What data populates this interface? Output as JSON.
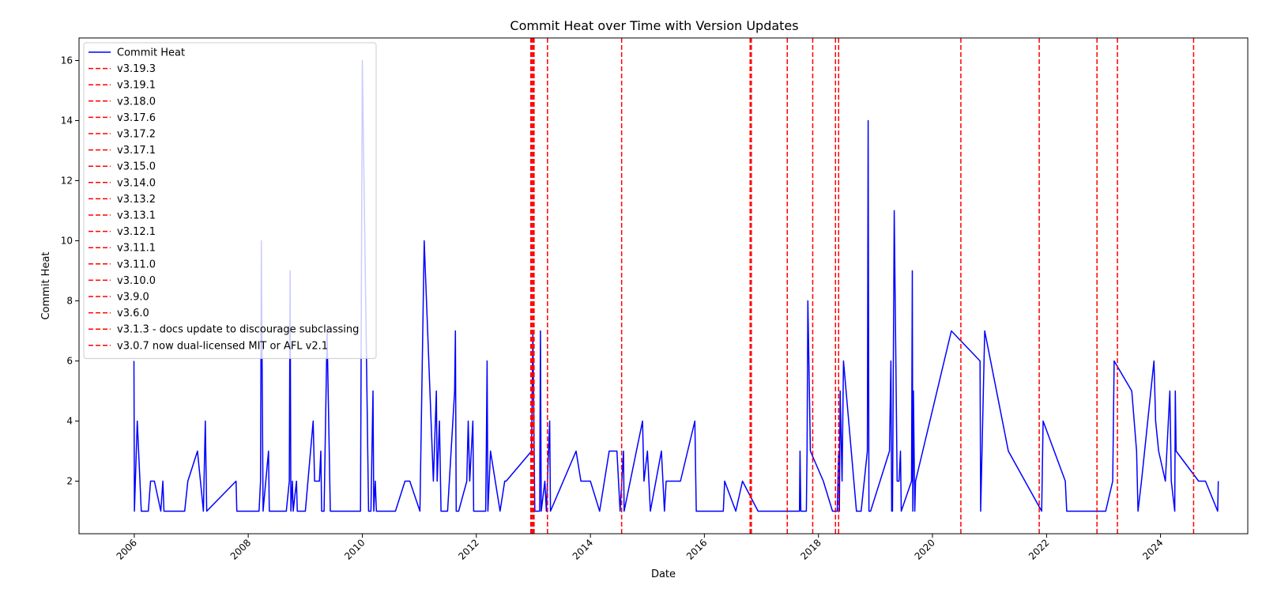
{
  "chart_data": {
    "type": "line",
    "title": "Commit Heat over Time with Version Updates",
    "xlabel": "Date",
    "ylabel": "Commit Heat",
    "xlim": [
      "2005-01-12",
      "2025-07-13"
    ],
    "ylim": [
      0.25,
      16.75
    ],
    "x_ticks": [
      "2006",
      "2008",
      "2010",
      "2012",
      "2014",
      "2016",
      "2018",
      "2020",
      "2022",
      "2024"
    ],
    "y_ticks": [
      2,
      4,
      6,
      8,
      10,
      12,
      14,
      16
    ],
    "grid": false,
    "legend_position": "upper-left",
    "colors": {
      "series": "#0000ff",
      "version_lines": "#ff0000",
      "axis": "#000000"
    },
    "series": [
      {
        "name": "Commit Heat",
        "color": "#0000ff",
        "points": [
          [
            "2005-12-30",
            6
          ],
          [
            "2006-01-02",
            1
          ],
          [
            "2006-01-20",
            4
          ],
          [
            "2006-02-15",
            1
          ],
          [
            "2006-04-01",
            1
          ],
          [
            "2006-04-15",
            2
          ],
          [
            "2006-05-10",
            2
          ],
          [
            "2006-06-20",
            1
          ],
          [
            "2006-07-03",
            2
          ],
          [
            "2006-07-10",
            1
          ],
          [
            "2006-11-20",
            1
          ],
          [
            "2006-12-10",
            2
          ],
          [
            "2007-02-10",
            3
          ],
          [
            "2007-03-20",
            1
          ],
          [
            "2007-04-01",
            4
          ],
          [
            "2007-04-10",
            1
          ],
          [
            "2007-10-15",
            2
          ],
          [
            "2007-10-20",
            1
          ],
          [
            "2008-03-10",
            1
          ],
          [
            "2008-03-20",
            2
          ],
          [
            "2008-03-25",
            10
          ],
          [
            "2008-04-05",
            1
          ],
          [
            "2008-05-10",
            3
          ],
          [
            "2008-05-15",
            1
          ],
          [
            "2008-09-01",
            1
          ],
          [
            "2008-09-20",
            2
          ],
          [
            "2008-09-25",
            9
          ],
          [
            "2008-09-30",
            1
          ],
          [
            "2008-10-10",
            2
          ],
          [
            "2008-10-15",
            1
          ],
          [
            "2008-11-05",
            2
          ],
          [
            "2008-11-10",
            1
          ],
          [
            "2009-01-01",
            1
          ],
          [
            "2009-02-20",
            4
          ],
          [
            "2009-03-01",
            2
          ],
          [
            "2009-04-01",
            2
          ],
          [
            "2009-04-10",
            3
          ],
          [
            "2009-04-15",
            1
          ],
          [
            "2009-05-01",
            1
          ],
          [
            "2009-05-20",
            7
          ],
          [
            "2009-06-10",
            1
          ],
          [
            "2009-12-20",
            1
          ],
          [
            "2010-01-01",
            16
          ],
          [
            "2010-01-25",
            7
          ],
          [
            "2010-02-10",
            1
          ],
          [
            "2010-02-25",
            1
          ],
          [
            "2010-03-10",
            5
          ],
          [
            "2010-03-15",
            1
          ],
          [
            "2010-03-25",
            2
          ],
          [
            "2010-04-01",
            1
          ],
          [
            "2010-08-01",
            1
          ],
          [
            "2010-10-01",
            2
          ],
          [
            "2010-11-01",
            2
          ],
          [
            "2011-01-05",
            1
          ],
          [
            "2011-02-01",
            10
          ],
          [
            "2011-04-01",
            2
          ],
          [
            "2011-04-20",
            5
          ],
          [
            "2011-04-25",
            2
          ],
          [
            "2011-05-10",
            4
          ],
          [
            "2011-05-20",
            1
          ],
          [
            "2011-07-01",
            1
          ],
          [
            "2011-08-15",
            5
          ],
          [
            "2011-08-20",
            7
          ],
          [
            "2011-08-25",
            1
          ],
          [
            "2011-09-10",
            1
          ],
          [
            "2011-11-01",
            2
          ],
          [
            "2011-11-10",
            4
          ],
          [
            "2011-11-20",
            2
          ],
          [
            "2011-12-10",
            4
          ],
          [
            "2011-12-15",
            1
          ],
          [
            "2012-03-01",
            1
          ],
          [
            "2012-03-05",
            3
          ],
          [
            "2012-03-10",
            6
          ],
          [
            "2012-03-15",
            1
          ],
          [
            "2012-04-01",
            3
          ],
          [
            "2012-06-01",
            1
          ],
          [
            "2012-07-01",
            2
          ],
          [
            "2012-07-10",
            2
          ],
          [
            "2012-12-20",
            3
          ],
          [
            "2012-12-28",
            7
          ],
          [
            "2013-01-10",
            1
          ],
          [
            "2013-02-10",
            1
          ],
          [
            "2013-02-15",
            7
          ],
          [
            "2013-02-20",
            1
          ],
          [
            "2013-03-15",
            2
          ],
          [
            "2013-03-25",
            1
          ],
          [
            "2013-04-15",
            4
          ],
          [
            "2013-04-20",
            1
          ],
          [
            "2013-10-01",
            3
          ],
          [
            "2013-11-01",
            2
          ],
          [
            "2014-01-01",
            2
          ],
          [
            "2014-03-01",
            1
          ],
          [
            "2014-05-01",
            3
          ],
          [
            "2014-06-20",
            3
          ],
          [
            "2014-07-10",
            1
          ],
          [
            "2014-08-01",
            3
          ],
          [
            "2014-08-05",
            1
          ],
          [
            "2014-12-01",
            4
          ],
          [
            "2014-12-10",
            2
          ],
          [
            "2015-01-01",
            3
          ],
          [
            "2015-01-20",
            1
          ],
          [
            "2015-04-01",
            3
          ],
          [
            "2015-04-20",
            1
          ],
          [
            "2015-05-01",
            2
          ],
          [
            "2015-08-01",
            2
          ],
          [
            "2015-11-01",
            4
          ],
          [
            "2015-11-10",
            1
          ],
          [
            "2016-05-01",
            1
          ],
          [
            "2016-05-10",
            2
          ],
          [
            "2016-07-20",
            1
          ],
          [
            "2016-09-01",
            2
          ],
          [
            "2016-12-10",
            1
          ],
          [
            "2017-04-10",
            1
          ],
          [
            "2017-09-01",
            1
          ],
          [
            "2017-09-05",
            3
          ],
          [
            "2017-09-10",
            1
          ],
          [
            "2017-10-15",
            1
          ],
          [
            "2017-10-20",
            3
          ],
          [
            "2017-10-25",
            8
          ],
          [
            "2017-11-10",
            3
          ],
          [
            "2018-02-01",
            2
          ],
          [
            "2018-04-01",
            1
          ],
          [
            "2018-05-01",
            1
          ],
          [
            "2018-05-10",
            3
          ],
          [
            "2018-05-15",
            1
          ],
          [
            "2018-05-20",
            5
          ],
          [
            "2018-06-01",
            2
          ],
          [
            "2018-06-10",
            6
          ],
          [
            "2018-09-01",
            1
          ],
          [
            "2018-10-01",
            1
          ],
          [
            "2018-11-10",
            3
          ],
          [
            "2018-11-15",
            14
          ],
          [
            "2018-11-20",
            1
          ],
          [
            "2018-12-01",
            1
          ],
          [
            "2019-04-01",
            3
          ],
          [
            "2019-04-10",
            6
          ],
          [
            "2019-04-15",
            1
          ],
          [
            "2019-04-20",
            1
          ],
          [
            "2019-05-01",
            11
          ],
          [
            "2019-05-20",
            2
          ],
          [
            "2019-06-01",
            2
          ],
          [
            "2019-06-10",
            3
          ],
          [
            "2019-06-15",
            1
          ],
          [
            "2019-08-20",
            2
          ],
          [
            "2019-08-25",
            9
          ],
          [
            "2019-08-28",
            1
          ],
          [
            "2019-09-01",
            5
          ],
          [
            "2019-09-10",
            1
          ],
          [
            "2019-09-15",
            2
          ],
          [
            "2020-05-01",
            7
          ],
          [
            "2020-11-01",
            6
          ],
          [
            "2020-11-05",
            1
          ],
          [
            "2020-12-01",
            7
          ],
          [
            "2021-05-01",
            3
          ],
          [
            "2021-12-01",
            1
          ],
          [
            "2021-12-10",
            4
          ],
          [
            "2022-05-01",
            2
          ],
          [
            "2022-05-10",
            1
          ],
          [
            "2022-11-01",
            1
          ],
          [
            "2022-12-01",
            1
          ],
          [
            "2023-01-01",
            1
          ],
          [
            "2023-01-15",
            1
          ],
          [
            "2023-03-01",
            2
          ],
          [
            "2023-03-10",
            6
          ],
          [
            "2023-07-01",
            5
          ],
          [
            "2023-08-01",
            3
          ],
          [
            "2023-08-10",
            1
          ],
          [
            "2023-09-01",
            2
          ],
          [
            "2023-11-20",
            6
          ],
          [
            "2023-12-01",
            4
          ],
          [
            "2023-12-20",
            3
          ],
          [
            "2024-02-01",
            2
          ],
          [
            "2024-03-01",
            5
          ],
          [
            "2024-03-10",
            2
          ],
          [
            "2024-04-01",
            1
          ],
          [
            "2024-04-05",
            5
          ],
          [
            "2024-04-10",
            3
          ],
          [
            "2024-09-01",
            2
          ],
          [
            "2024-10-15",
            2
          ],
          [
            "2025-01-01",
            1
          ],
          [
            "2025-01-05",
            2
          ]
        ]
      }
    ],
    "version_lines": [
      {
        "label": "v3.19.3",
        "date": "2024-07-31"
      },
      {
        "label": "v3.19.1",
        "date": "2023-03-31"
      },
      {
        "label": "v3.18.0",
        "date": "2022-11-20"
      },
      {
        "label": "v3.17.6",
        "date": "2021-11-15"
      },
      {
        "label": "v3.17.2",
        "date": "2020-07-01"
      },
      {
        "label": "v3.17.1",
        "date": "2018-05-10"
      },
      {
        "label": "v3.15.0",
        "date": "2018-04-20"
      },
      {
        "label": "v3.14.0",
        "date": "2017-11-25"
      },
      {
        "label": "v3.13.2",
        "date": "2017-06-15"
      },
      {
        "label": "v3.13.1",
        "date": "2016-10-28"
      },
      {
        "label": "v3.12.1",
        "date": "2016-10-20"
      },
      {
        "label": "v3.11.1",
        "date": "2014-07-20"
      },
      {
        "label": "v3.11.0",
        "date": "2013-04-01"
      },
      {
        "label": "v3.10.0",
        "date": "2013-01-05"
      },
      {
        "label": "v3.9.0",
        "date": "2013-01-01"
      },
      {
        "label": "v3.6.0",
        "date": "2012-12-28"
      },
      {
        "label": "v3.1.3 - docs update to discourage subclassing",
        "date": "2012-12-20"
      },
      {
        "label": "v3.0.7 now dual-licensed MIT or AFL v2.1",
        "date": "2012-12-15"
      }
    ]
  }
}
